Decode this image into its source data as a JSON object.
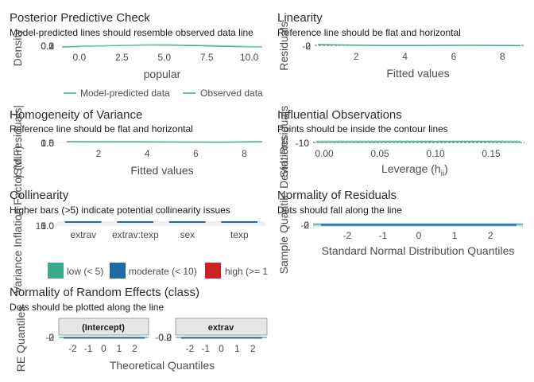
{
  "colors": {
    "green": "#3aaa8a",
    "blue": "#1f6aa5",
    "red": "#cc2127",
    "ref_line": "#3aaa8a",
    "grid": "#ebebeb",
    "strip_bg": "#e6e6e6",
    "strip_border": "#8c8c8c"
  },
  "chart_data": [
    {
      "id": "ppc",
      "type": "line",
      "title": "Posterior Predictive Check",
      "subtitle": "Model-predicted lines should resemble observed data line",
      "xlabel": "popular",
      "ylabel": "Density",
      "x_ticks": [
        "0.0",
        "2.5",
        "5.0",
        "7.5",
        "10.0"
      ],
      "x_tick_values": [
        0,
        2.5,
        5,
        7.5,
        10
      ],
      "xlim": [
        -1.3,
        11.0
      ],
      "y_tick_labels": [
        "0.3",
        "0.2",
        "0.1",
        "0.0"
      ],
      "legend": [
        "Model-predicted data",
        "Observed data"
      ],
      "legend_position": "bottom"
    },
    {
      "id": "linearity",
      "type": "scatter",
      "title": "Linearity",
      "subtitle": "Reference line should be flat and horizontal",
      "xlabel": "Fitted values",
      "ylabel": "Residuals",
      "x_ticks": [
        "2",
        "4",
        "6",
        "8"
      ],
      "x_tick_values": [
        2,
        4,
        6,
        8
      ],
      "xlim": [
        0.3,
        8.9
      ],
      "y_tick_labels": [
        "2",
        "0",
        "-2"
      ]
    },
    {
      "id": "homogeneity",
      "type": "scatter",
      "title": "Homogeneity of Variance",
      "subtitle": "Reference line should be flat and horizontal",
      "xlabel": "Fitted values",
      "ylabel": "|Std. residuals|",
      "x_ticks": [
        "2",
        "4",
        "6",
        "8"
      ],
      "x_tick_values": [
        2,
        4,
        6,
        8
      ],
      "xlim": [
        0.3,
        8.9
      ],
      "y_tick_labels": [
        "1.5",
        "1.0",
        "0.5",
        "0.0"
      ]
    },
    {
      "id": "influential",
      "type": "scatter",
      "title": "Influential Observations",
      "subtitle": "Points should be inside the contour lines",
      "xlabel": "Leverage (h",
      "xlabel_sub": "ii",
      "xlabel_end": ")",
      "ylabel": "Std. Residuals",
      "x_ticks": [
        "0.00",
        "0.05",
        "0.10",
        "0.15"
      ],
      "x_tick_values": [
        0,
        0.05,
        0.1,
        0.15
      ],
      "xlim": [
        -0.01,
        0.18
      ],
      "y_tick_labels": [
        "10",
        "0",
        "-10"
      ]
    },
    {
      "id": "collinearity",
      "type": "bar",
      "title": "Collinearity",
      "subtitle": "Higher bars (>5) indicate potential collinearity issues",
      "xlabel": "",
      "ylabel": "Variance Inflation Factor (VIF)",
      "categories": [
        "extrav",
        "extrav:texp",
        "sex",
        "texp"
      ],
      "y_tick_labels": [
        "10.0",
        "5.0",
        "1.0"
      ],
      "legend": [
        "low (< 5)",
        "moderate (< 10)",
        "high (>= 1"
      ],
      "legend_position": "bottom"
    },
    {
      "id": "normality",
      "type": "scatter",
      "title": "Normality of Residuals",
      "subtitle": "Dots should fall along the line",
      "xlabel": "Standard Normal Distribution Quantiles",
      "ylabel": "Sample Quantile Deviations",
      "x_ticks": [
        "-2",
        "-1",
        "0",
        "1",
        "2"
      ],
      "x_tick_values": [
        -2,
        -1,
        0,
        1,
        2
      ],
      "xlim": [
        -2.95,
        2.95
      ],
      "y_tick_labels": [
        "2",
        "0",
        "-2"
      ]
    },
    {
      "id": "random_effects",
      "type": "scatter",
      "title": "Normality of Random Effects (class)",
      "subtitle": "Dots should be plotted along the line",
      "xlabel": "Theoretical Quantiles",
      "ylabel": "RE Quantiles",
      "facets": [
        {
          "label": "(Intercept)",
          "y_tick_labels": [
            "2",
            "0",
            "-2"
          ]
        },
        {
          "label": "extrav",
          "y_tick_labels": [
            "0.2",
            "0.0",
            "-0.2"
          ]
        }
      ],
      "x_ticks": [
        "-2",
        "-1",
        "0",
        "1",
        "2"
      ],
      "x_tick_values": [
        -2,
        -1,
        0,
        1,
        2
      ],
      "xlim": [
        -2.9,
        2.9
      ]
    }
  ]
}
